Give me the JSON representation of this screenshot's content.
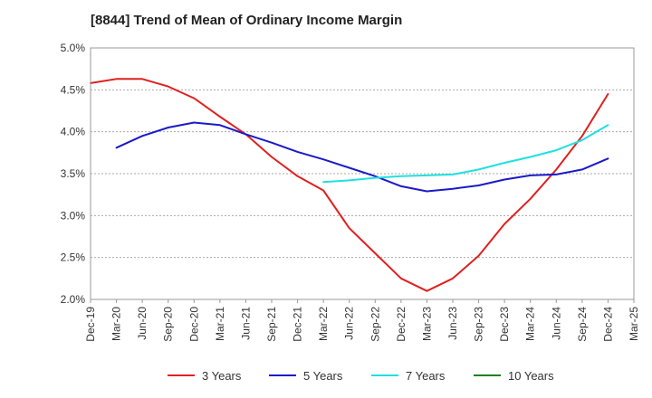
{
  "chart_data": {
    "type": "line",
    "title": "[8844]  Trend of Mean of Ordinary Income Margin",
    "xlabel": "",
    "ylabel": "",
    "x_ticks": [
      "Dec-19",
      "Mar-20",
      "Jun-20",
      "Sep-20",
      "Dec-20",
      "Mar-21",
      "Jun-21",
      "Sep-21",
      "Dec-21",
      "Mar-22",
      "Jun-22",
      "Sep-22",
      "Dec-22",
      "Mar-23",
      "Jun-23",
      "Sep-23",
      "Dec-23",
      "Mar-24",
      "Jun-24",
      "Sep-24",
      "Dec-24",
      "Mar-25"
    ],
    "y_ticks": [
      "2.0%",
      "2.5%",
      "3.0%",
      "3.5%",
      "4.0%",
      "4.5%",
      "5.0%"
    ],
    "ylim": [
      2.0,
      5.0
    ],
    "y_unit": "%",
    "grid": "horizontal dashed",
    "legend_position": "bottom",
    "series": [
      {
        "name": "3 Years",
        "color": "#e02020",
        "points": [
          [
            "Dec-19",
            4.58
          ],
          [
            "Mar-20",
            4.63
          ],
          [
            "Jun-20",
            4.63
          ],
          [
            "Sep-20",
            4.54
          ],
          [
            "Dec-20",
            4.4
          ],
          [
            "Mar-21",
            4.18
          ],
          [
            "Jun-21",
            3.97
          ],
          [
            "Sep-21",
            3.7
          ],
          [
            "Dec-21",
            3.47
          ],
          [
            "Mar-22",
            3.3
          ],
          [
            "Jun-22",
            2.85
          ],
          [
            "Sep-22",
            2.55
          ],
          [
            "Dec-22",
            2.25
          ],
          [
            "Mar-23",
            2.1
          ],
          [
            "Jun-23",
            2.25
          ],
          [
            "Sep-23",
            2.52
          ],
          [
            "Dec-23",
            2.9
          ],
          [
            "Mar-24",
            3.2
          ],
          [
            "Jun-24",
            3.55
          ],
          [
            "Sep-24",
            3.95
          ],
          [
            "Dec-24",
            4.45
          ]
        ]
      },
      {
        "name": "5 Years",
        "color": "#1a1ac8",
        "points": [
          [
            "Mar-20",
            3.81
          ],
          [
            "Jun-20",
            3.95
          ],
          [
            "Sep-20",
            4.05
          ],
          [
            "Dec-20",
            4.11
          ],
          [
            "Mar-21",
            4.08
          ],
          [
            "Jun-21",
            3.97
          ],
          [
            "Sep-21",
            3.87
          ],
          [
            "Dec-21",
            3.76
          ],
          [
            "Mar-22",
            3.67
          ],
          [
            "Jun-22",
            3.57
          ],
          [
            "Sep-22",
            3.47
          ],
          [
            "Dec-22",
            3.35
          ],
          [
            "Mar-23",
            3.29
          ],
          [
            "Jun-23",
            3.32
          ],
          [
            "Sep-23",
            3.36
          ],
          [
            "Dec-23",
            3.43
          ],
          [
            "Mar-24",
            3.48
          ],
          [
            "Jun-24",
            3.49
          ],
          [
            "Sep-24",
            3.55
          ],
          [
            "Dec-24",
            3.68
          ]
        ]
      },
      {
        "name": "7 Years",
        "color": "#20e0e0",
        "points": [
          [
            "Mar-22",
            3.4
          ],
          [
            "Jun-22",
            3.42
          ],
          [
            "Sep-22",
            3.45
          ],
          [
            "Dec-22",
            3.47
          ],
          [
            "Mar-23",
            3.48
          ],
          [
            "Jun-23",
            3.49
          ],
          [
            "Sep-23",
            3.55
          ],
          [
            "Dec-23",
            3.63
          ],
          [
            "Mar-24",
            3.7
          ],
          [
            "Jun-24",
            3.78
          ],
          [
            "Sep-24",
            3.9
          ],
          [
            "Dec-24",
            4.08
          ]
        ]
      },
      {
        "name": "10 Years",
        "color": "#208020",
        "points": []
      }
    ]
  }
}
